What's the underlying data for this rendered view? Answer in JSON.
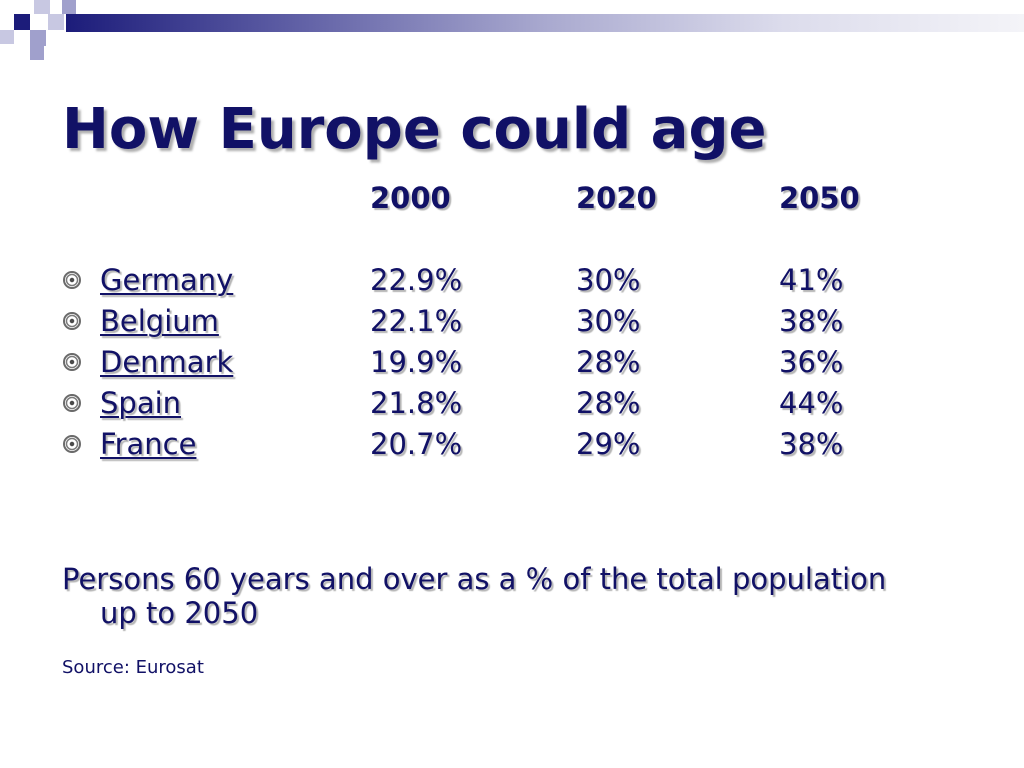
{
  "slide": {
    "title": "How Europe could age",
    "columns": [
      "2000",
      "2020",
      "2050"
    ],
    "rows": [
      {
        "country": "Germany",
        "values": [
          "22.9%",
          "30%",
          "41%"
        ]
      },
      {
        "country": "Belgium",
        "values": [
          "22.1%",
          "30%",
          "38%"
        ]
      },
      {
        "country": "Denmark",
        "values": [
          "19.9%",
          "28%",
          "36%"
        ]
      },
      {
        "country": "Spain",
        "values": [
          "21.8%",
          "28%",
          "44%"
        ]
      },
      {
        "country": "France",
        "values": [
          "20.7%",
          "29%",
          "38%"
        ]
      }
    ],
    "caption_line1": "Persons 60 years and over as a % of the total population",
    "caption_line2": "up to 2050",
    "source": "Source: Eurosat",
    "bullet_icon": "circle-bullet-icon"
  },
  "colors": {
    "text": "#111166",
    "accent_dark": "#1c1c7a",
    "accent_light": "#a9a9cf"
  }
}
